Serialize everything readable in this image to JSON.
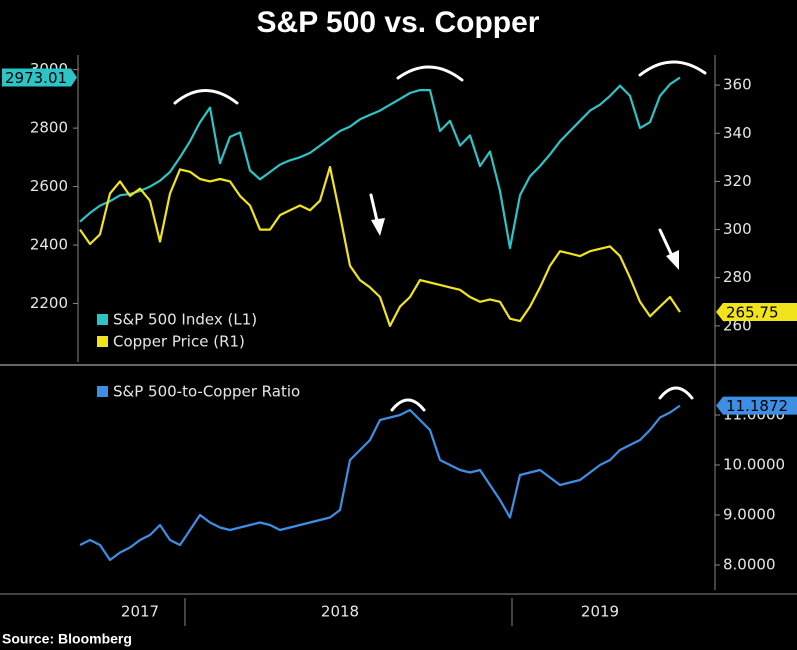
{
  "source": "Source: Bloomberg",
  "chart_data": [
    {
      "type": "line",
      "title": "S&P 500 vs. Copper",
      "ylim": [
        2000,
        3050
      ],
      "yticks": [
        2200,
        2400,
        2600,
        2800,
        3000
      ],
      "y2lim": [
        245,
        372.5
      ],
      "y2ticks": [
        260,
        280,
        300,
        320,
        340,
        360
      ],
      "legend": "lower left",
      "series": [
        {
          "name": "S&P 500 Index (L1)",
          "color": "#2ec3c6",
          "values": [
            2480,
            2510,
            2535,
            2550,
            2570,
            2575,
            2585,
            2600,
            2620,
            2650,
            2700,
            2755,
            2820,
            2870,
            2680,
            2770,
            2785,
            2655,
            2625,
            2650,
            2675,
            2690,
            2700,
            2715,
            2740,
            2765,
            2790,
            2805,
            2830,
            2845,
            2860,
            2880,
            2900,
            2920,
            2930,
            2930,
            2790,
            2825,
            2740,
            2775,
            2670,
            2720,
            2585,
            2390,
            2570,
            2635,
            2670,
            2710,
            2755,
            2790,
            2825,
            2860,
            2880,
            2910,
            2945,
            2910,
            2800,
            2820,
            2910,
            2950,
            2973.01
          ],
          "value_labels": [
            null,
            null,
            null,
            null,
            null,
            null,
            null,
            null,
            null,
            null,
            null,
            null,
            null,
            null,
            null,
            null,
            null,
            null,
            null,
            null,
            null,
            null,
            null,
            null,
            null,
            null,
            null,
            null,
            null,
            null,
            null,
            null,
            null,
            null,
            null,
            null,
            null,
            null,
            null,
            null,
            null,
            null,
            null,
            null,
            null,
            null,
            null,
            null,
            null,
            null,
            null,
            null,
            null,
            null,
            null,
            null,
            null,
            null,
            null,
            null,
            "2973.01"
          ]
        },
        {
          "name": "Copper Price (R1)",
          "color": "#f2e41c",
          "axis": "y2",
          "values": [
            300,
            294,
            298,
            315,
            320,
            314,
            317,
            312,
            295,
            315,
            325,
            324,
            321,
            320,
            321,
            320,
            314,
            310,
            300,
            300,
            306,
            308,
            310,
            308,
            312,
            326,
            306,
            285,
            279,
            276,
            272,
            260,
            268,
            272,
            279,
            278,
            277,
            276,
            275,
            272,
            270,
            271,
            270,
            263,
            262,
            268,
            276,
            285,
            291,
            290,
            289,
            291,
            292,
            293,
            289,
            280,
            270,
            264,
            268,
            272,
            265.75
          ],
          "value_labels": [
            null,
            null,
            null,
            null,
            null,
            null,
            null,
            null,
            null,
            null,
            null,
            null,
            null,
            null,
            null,
            null,
            null,
            null,
            null,
            null,
            null,
            null,
            null,
            null,
            null,
            null,
            null,
            null,
            null,
            null,
            null,
            null,
            null,
            null,
            null,
            null,
            null,
            null,
            null,
            null,
            null,
            null,
            null,
            null,
            null,
            null,
            null,
            null,
            null,
            null,
            null,
            null,
            null,
            null,
            null,
            null,
            null,
            null,
            null,
            null,
            "265.75"
          ]
        }
      ]
    },
    {
      "type": "line",
      "y_axis_side": "right",
      "ylim": [
        7.5,
        11.94
      ],
      "yticks": [
        {
          "value": 8,
          "label": "8.0000"
        },
        {
          "value": 9,
          "label": "9.0000"
        },
        {
          "value": 10,
          "label": "10.0000"
        },
        {
          "value": 11,
          "label": "11.0000"
        }
      ],
      "legend": "upper left",
      "categories": [
        null,
        null,
        null,
        null,
        null,
        null,
        "2017",
        null,
        null,
        null,
        null,
        null,
        null,
        null,
        null,
        null,
        null,
        null,
        null,
        null,
        null,
        null,
        null,
        null,
        null,
        null,
        "2018",
        null,
        null,
        null,
        null,
        null,
        null,
        null,
        null,
        null,
        null,
        null,
        null,
        null,
        null,
        null,
        null,
        null,
        null,
        null,
        null,
        null,
        null,
        null,
        null,
        null,
        "2019",
        null,
        null,
        null,
        null,
        null,
        null,
        null,
        null
      ],
      "series": [
        {
          "name": "S&P 500-to-Copper Ratio",
          "color": "#3d8fe6",
          "values": [
            8.4,
            8.5,
            8.4,
            8.1,
            8.25,
            8.35,
            8.5,
            8.6,
            8.8,
            8.5,
            8.4,
            8.7,
            9.0,
            8.85,
            8.75,
            8.7,
            8.75,
            8.8,
            8.85,
            8.8,
            8.7,
            8.75,
            8.8,
            8.85,
            8.9,
            8.95,
            9.1,
            10.1,
            10.3,
            10.5,
            10.9,
            10.95,
            11.0,
            11.1,
            10.9,
            10.7,
            10.1,
            10.0,
            9.9,
            9.85,
            9.9,
            9.6,
            9.3,
            8.95,
            9.8,
            9.85,
            9.9,
            9.75,
            9.6,
            9.65,
            9.7,
            9.85,
            10.0,
            10.1,
            10.3,
            10.4,
            10.5,
            10.7,
            10.95,
            11.05,
            11.1872
          ],
          "value_labels": [
            null,
            null,
            null,
            null,
            null,
            null,
            null,
            null,
            null,
            null,
            null,
            null,
            null,
            null,
            null,
            null,
            null,
            null,
            null,
            null,
            null,
            null,
            null,
            null,
            null,
            null,
            null,
            null,
            null,
            null,
            null,
            null,
            null,
            null,
            null,
            null,
            null,
            null,
            null,
            null,
            null,
            null,
            null,
            null,
            null,
            null,
            null,
            null,
            null,
            null,
            null,
            null,
            null,
            null,
            null,
            null,
            null,
            null,
            null,
            null,
            "11.1872"
          ]
        }
      ]
    }
  ]
}
